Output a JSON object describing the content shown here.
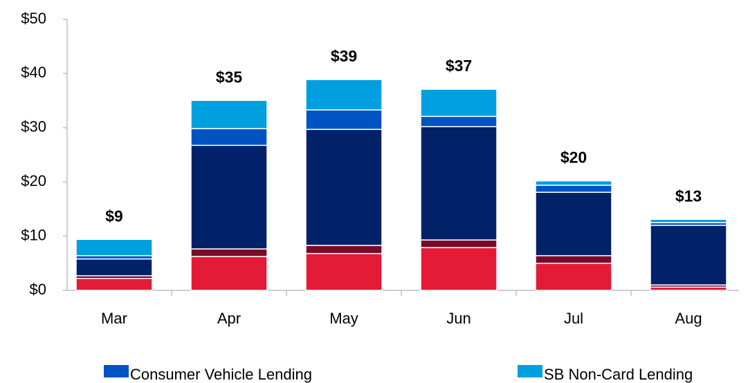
{
  "chart_data": {
    "type": "stacked_bar",
    "categories": [
      "Mar",
      "Apr",
      "May",
      "Jun",
      "Jul",
      "Aug"
    ],
    "series": [
      {
        "color": "#e31b37",
        "values": [
          2.2,
          6.25,
          6.8,
          7.9,
          5.0,
          0.6
        ]
      },
      {
        "color": "#7a0a2a",
        "values": [
          0.5,
          1.4,
          1.5,
          1.4,
          1.4,
          0.4
        ]
      },
      {
        "color": "#012169",
        "values": [
          3.1,
          19.1,
          21.4,
          20.9,
          11.7,
          11.0
        ]
      },
      {
        "name": "Consumer Vehicle Lending",
        "color": "#0053c3",
        "values": [
          0.6,
          3.1,
          3.6,
          1.9,
          1.3,
          0.5
        ]
      },
      {
        "name": "SB Non-Card Lending",
        "color": "#009fdf",
        "values": [
          3.0,
          5.2,
          5.6,
          5.0,
          0.8,
          0.6
        ]
      }
    ],
    "totals": [
      9.4,
      35.05,
      38.9,
      37.1,
      20.2,
      13.1
    ],
    "total_labels": [
      "$9",
      "$35",
      "$39",
      "$37",
      "$20",
      "$13"
    ],
    "ylim": [
      0,
      50
    ],
    "yticks": [
      {
        "value": 0,
        "label": "$0"
      },
      {
        "value": 10,
        "label": "$10"
      },
      {
        "value": 20,
        "label": "$20"
      },
      {
        "value": 30,
        "label": "$30"
      },
      {
        "value": 40,
        "label": "$40"
      },
      {
        "value": 50,
        "label": "$50"
      }
    ],
    "grid": false
  }
}
